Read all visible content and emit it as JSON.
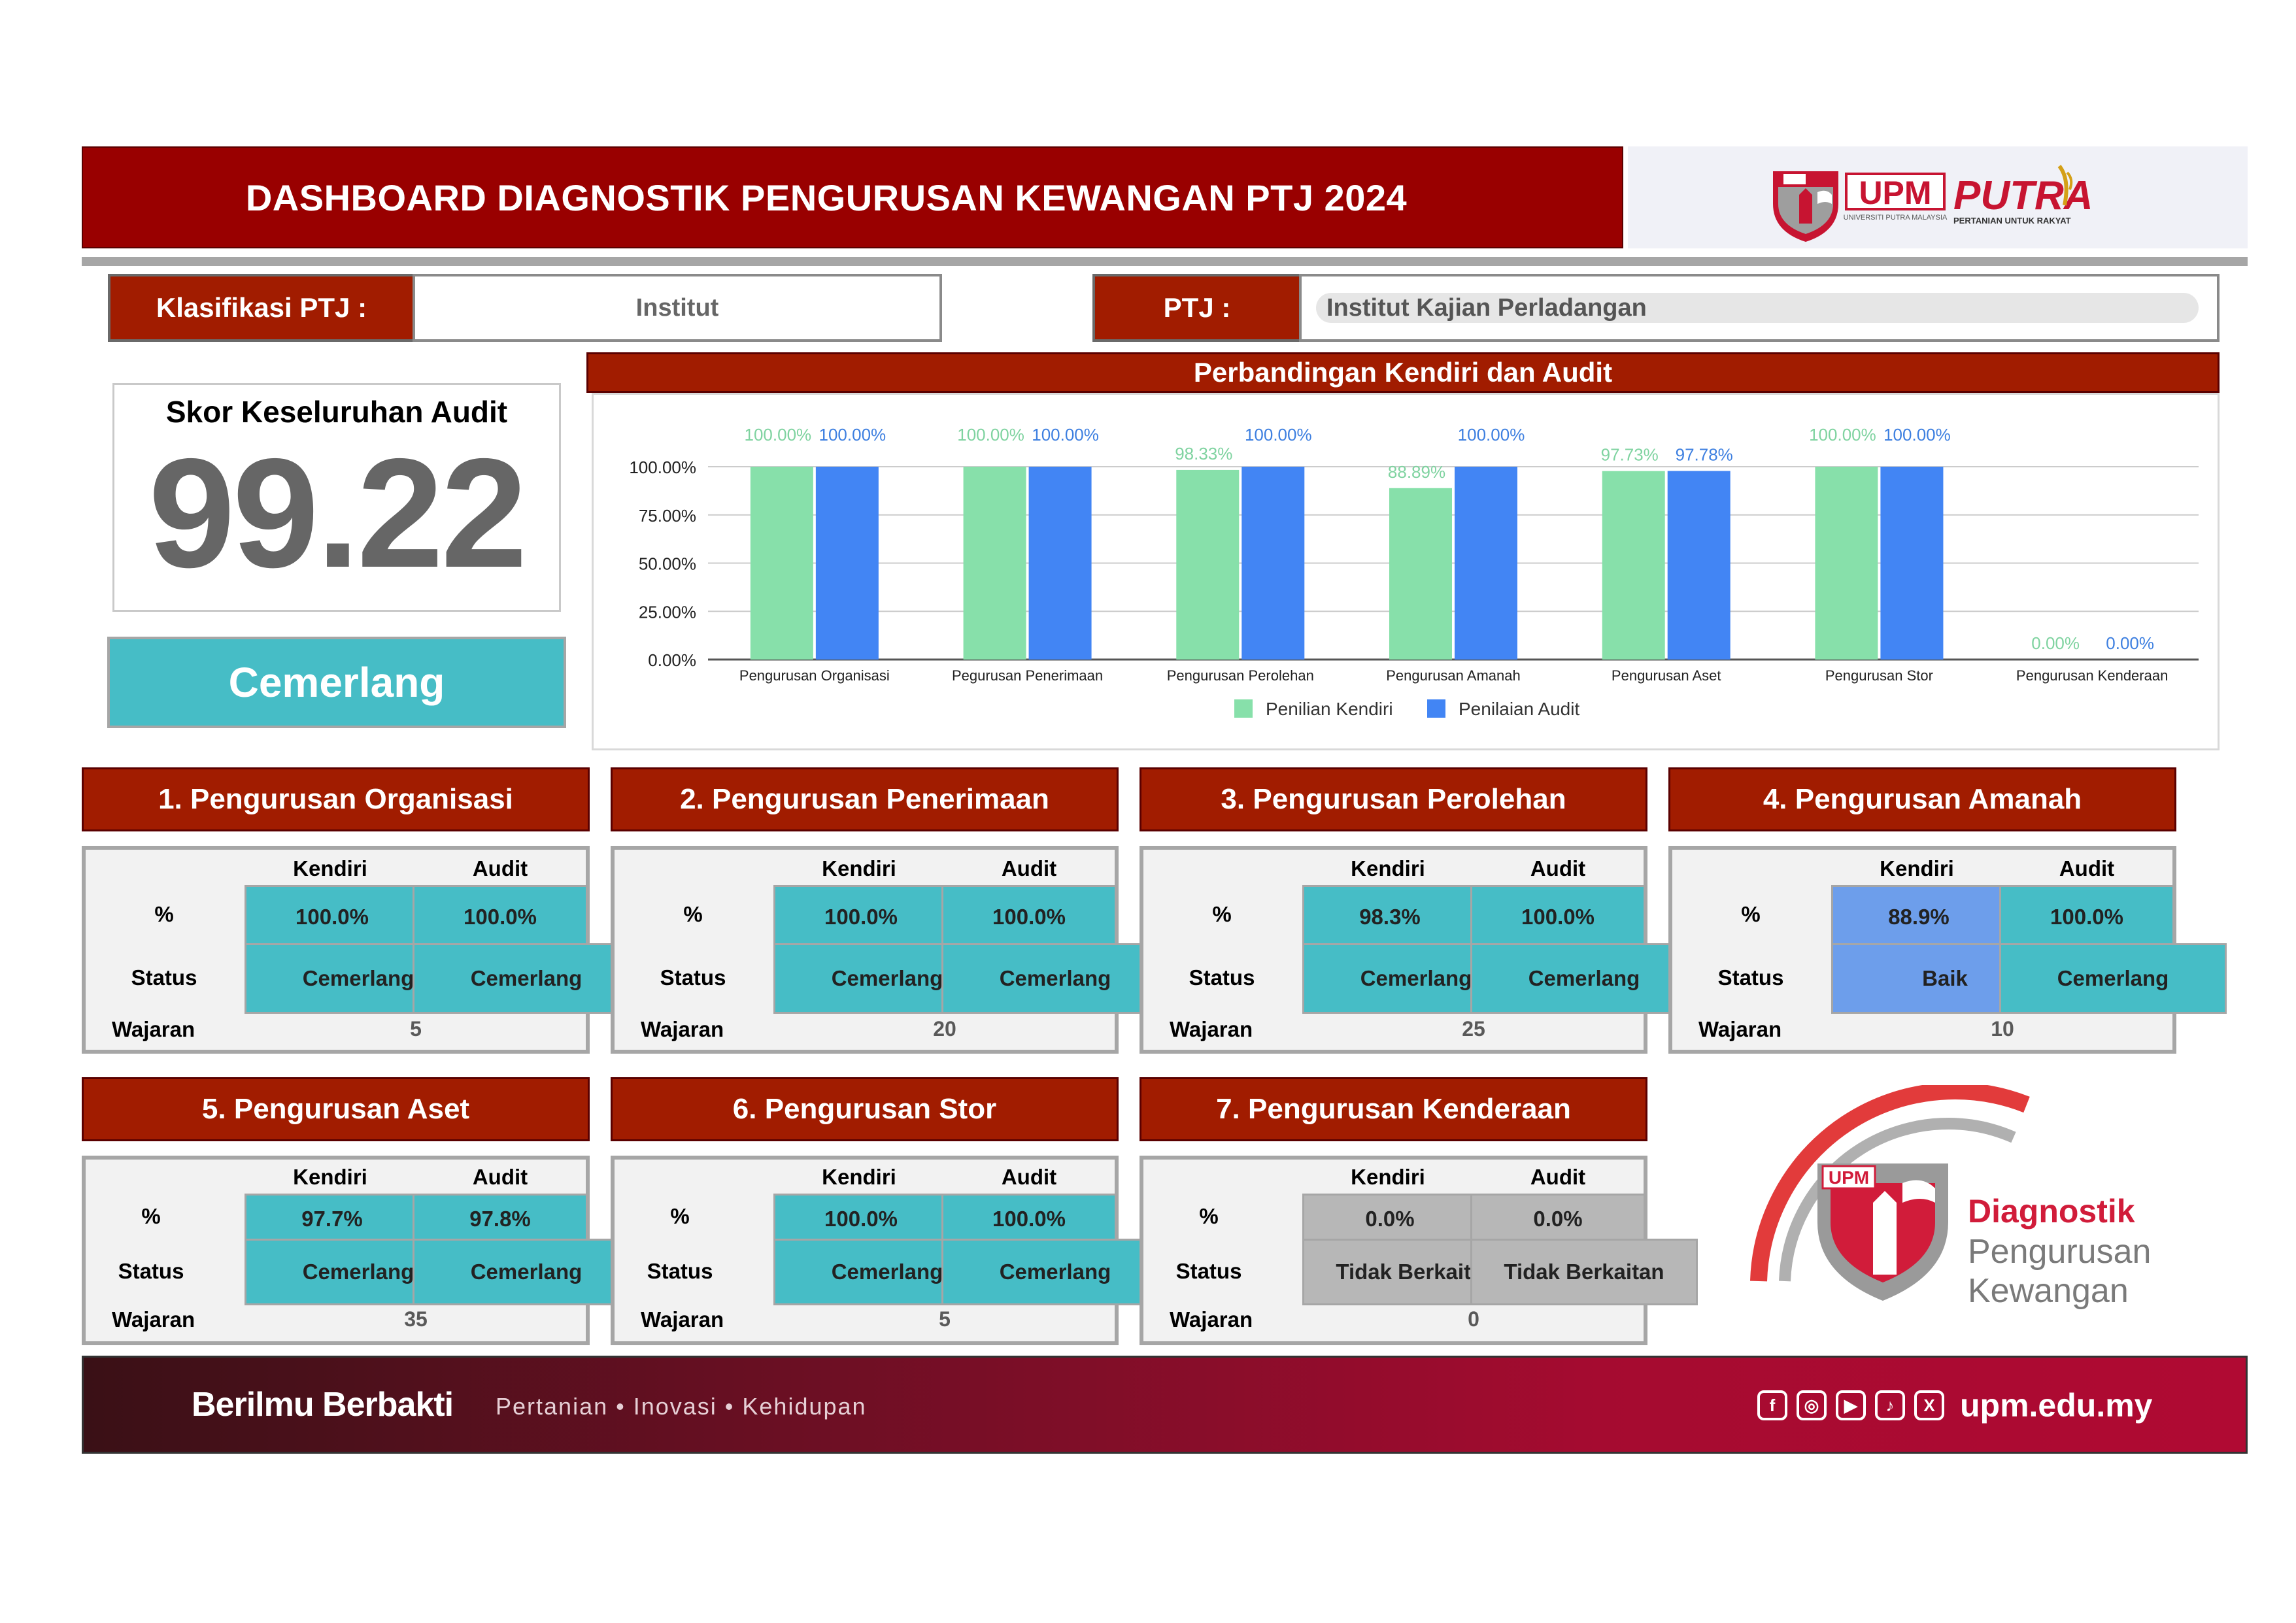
{
  "header": {
    "title": "DASHBOARD DIAGNOSTIK PENGURUSAN KEWANGAN PTJ 2024",
    "logos": [
      {
        "name": "upm-logo",
        "text": "UPM",
        "subtext": "UNIVERSITI PUTRA MALAYSIA"
      },
      {
        "name": "putra-logo",
        "text": "PUTRA",
        "subtext": "PERTANIAN UNTUK RAKYAT"
      }
    ]
  },
  "filters": {
    "klasifikasi_label": "Klasifikasi PTJ :",
    "klasifikasi_value": "Institut",
    "ptj_label": "PTJ :",
    "ptj_value": "Institut Kajian Perladangan"
  },
  "score": {
    "title": "Skor Keseluruhan Audit",
    "value": "99.22",
    "rating": "Cemerlang"
  },
  "colors": {
    "header_red": "#990000",
    "section_red": "#a11c00",
    "teal": "#46bdc6",
    "blue_cell": "#6d9eeb",
    "gray_cell": "#b7b7b7",
    "kendiri_series": "#87e0aa",
    "audit_series": "#4285f4"
  },
  "chart_data": {
    "type": "bar",
    "title": "Perbandingan Kendiri dan Audit",
    "categories": [
      "Pengurusan Organisasi",
      "Pegurusan Penerimaan",
      "Pengurusan Perolehan",
      "Pengurusan Amanah",
      "Pengurusan Aset",
      "Pengurusan Stor",
      "Pengurusan Kenderaan"
    ],
    "series": [
      {
        "name": "Penilian Kendiri",
        "values": [
          100.0,
          100.0,
          98.33,
          88.89,
          97.73,
          100.0,
          0.0
        ],
        "labels": [
          "100.00%",
          "100.00%",
          "98.33%",
          "88.89%",
          "97.73%",
          "100.00%",
          "0.00%"
        ],
        "color": "#87e0aa",
        "label_color": "#7fd3a0"
      },
      {
        "name": "Penilaian Audit",
        "values": [
          100.0,
          100.0,
          100.0,
          100.0,
          97.78,
          100.0,
          0.0
        ],
        "labels": [
          "100.00%",
          "100.00%",
          "100.00%",
          "100.00%",
          "97.78%",
          "100.00%",
          "0.00%"
        ],
        "color": "#4285f4",
        "label_color": "#3d7fe0"
      }
    ],
    "ylim": [
      0,
      100
    ],
    "yticks": [
      "0.00%",
      "25.00%",
      "50.00%",
      "75.00%",
      "100.00%"
    ],
    "grid": true,
    "legend": "bottom"
  },
  "labels": {
    "kendiri": "Kendiri",
    "audit": "Audit",
    "percent": "%",
    "status": "Status",
    "wajaran": "Wajaran"
  },
  "sections": [
    {
      "title": "1. Pengurusan Organisasi",
      "kendiri_pct": "100.0%",
      "audit_pct": "100.0%",
      "kendiri_status": "Cemerlang",
      "audit_status": "Cemerlang",
      "kendiri_level": 100.0,
      "audit_level": 100.0,
      "kendiri_color": "#46bdc6",
      "audit_color": "#46bdc6",
      "wajaran": "5"
    },
    {
      "title": "2. Pengurusan Penerimaan",
      "kendiri_pct": "100.0%",
      "audit_pct": "100.0%",
      "kendiri_status": "Cemerlang",
      "audit_status": "Cemerlang",
      "kendiri_level": 100.0,
      "audit_level": 100.0,
      "kendiri_color": "#46bdc6",
      "audit_color": "#46bdc6",
      "wajaran": "20"
    },
    {
      "title": "3. Pengurusan Perolehan",
      "kendiri_pct": "98.3%",
      "audit_pct": "100.0%",
      "kendiri_status": "Cemerlang",
      "audit_status": "Cemerlang",
      "kendiri_level": 98.3,
      "audit_level": 100.0,
      "kendiri_color": "#46bdc6",
      "audit_color": "#46bdc6",
      "wajaran": "25"
    },
    {
      "title": "4. Pengurusan Amanah",
      "kendiri_pct": "88.9%",
      "audit_pct": "100.0%",
      "kendiri_status": "Baik",
      "audit_status": "Cemerlang",
      "kendiri_level": 88.9,
      "audit_level": 100.0,
      "kendiri_color": "#6d9eeb",
      "audit_color": "#46bdc6",
      "wajaran": "10"
    },
    {
      "title": "5. Pengurusan Aset",
      "kendiri_pct": "97.7%",
      "audit_pct": "97.8%",
      "kendiri_status": "Cemerlang",
      "audit_status": "Cemerlang",
      "kendiri_level": 97.7,
      "audit_level": 97.8,
      "kendiri_color": "#46bdc6",
      "audit_color": "#46bdc6",
      "wajaran": "35"
    },
    {
      "title": "6. Pengurusan Stor",
      "kendiri_pct": "100.0%",
      "audit_pct": "100.0%",
      "kendiri_status": "Cemerlang",
      "audit_status": "Cemerlang",
      "kendiri_level": 100.0,
      "audit_level": 100.0,
      "kendiri_color": "#46bdc6",
      "audit_color": "#46bdc6",
      "wajaran": "5"
    },
    {
      "title": "7. Pengurusan Kenderaan",
      "kendiri_pct": "0.0%",
      "audit_pct": "0.0%",
      "kendiri_status": "Tidak Berkaitan",
      "audit_status": "Tidak Berkaitan",
      "kendiri_level": 0.0,
      "audit_level": 0.0,
      "kendiri_color": "#b7b7b7",
      "audit_color": "#b7b7b7",
      "wajaran": "0"
    }
  ],
  "diagnostik_logo": {
    "badge": "UPM",
    "line1": "Diagnostik",
    "line2": "Pengurusan",
    "line3": "Kewangan"
  },
  "footer": {
    "motto": "Berilmu Berbakti",
    "tagline": "Pertanian • Inovasi • Kehidupan",
    "social": [
      {
        "icon": "facebook-icon",
        "glyph": "f"
      },
      {
        "icon": "instagram-icon",
        "glyph": "◎"
      },
      {
        "icon": "youtube-icon",
        "glyph": "▶"
      },
      {
        "icon": "tiktok-icon",
        "glyph": "♪"
      },
      {
        "icon": "x-icon",
        "glyph": "X"
      }
    ],
    "url": "upm.edu.my"
  }
}
